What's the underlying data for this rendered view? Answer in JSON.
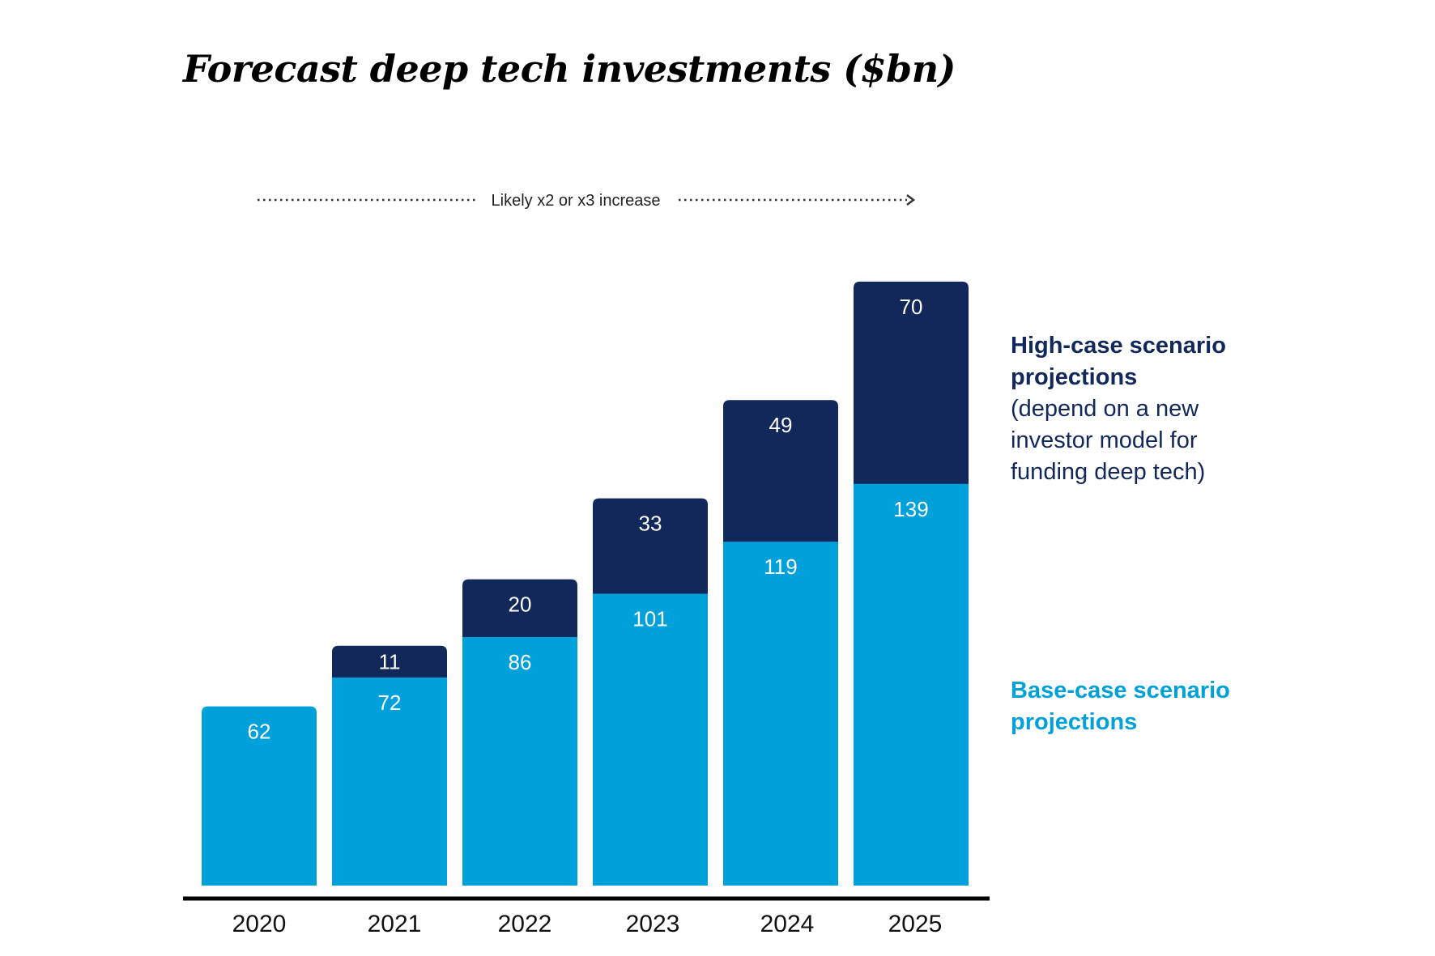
{
  "title": "Forecast deep tech investments ($bn)",
  "annotation": "Likely x2 or x3 increase",
  "colors": {
    "base": "#00a0da",
    "high": "#12275a",
    "axis": "#000000",
    "annotation": "#333333"
  },
  "legend": {
    "high_title": "High-case scenario projections",
    "high_note": "(depend on a new investor model for funding deep tech)",
    "base_title": "Base-case scenario projections"
  },
  "chart_data": {
    "type": "bar",
    "stacked": true,
    "title": "Forecast deep tech investments ($bn)",
    "categories": [
      "2020",
      "2021",
      "2022",
      "2023",
      "2024",
      "2025"
    ],
    "series": [
      {
        "name": "Base-case scenario projections",
        "values": [
          62,
          72,
          86,
          101,
          119,
          139
        ]
      },
      {
        "name": "High-case scenario projections",
        "values": [
          null,
          11,
          20,
          33,
          49,
          70
        ]
      }
    ],
    "xlabel": "",
    "ylabel": "",
    "ylim": [
      0,
      209
    ],
    "grid": false,
    "legend": "right"
  }
}
